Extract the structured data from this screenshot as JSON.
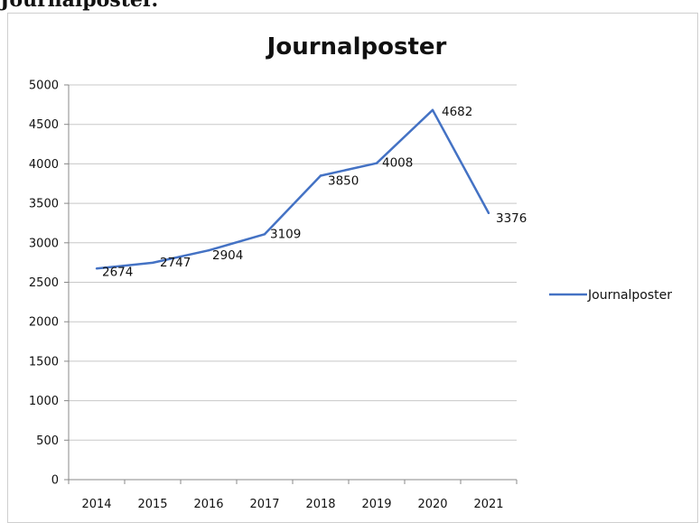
{
  "page": {
    "heading": "Journalposter."
  },
  "chart_data": {
    "type": "line",
    "title": "Journalposter",
    "xlabel": "",
    "ylabel": "",
    "categories": [
      "2014",
      "2015",
      "2016",
      "2017",
      "2018",
      "2019",
      "2020",
      "2021"
    ],
    "series": [
      {
        "name": "Journalposter",
        "values": [
          2674,
          2747,
          2904,
          3109,
          3850,
          4008,
          4682,
          3376
        ]
      }
    ],
    "data_labels": [
      "2674",
      "2747",
      "2904",
      "3109",
      "3850",
      "4008",
      "4682",
      "3376"
    ],
    "ylim": [
      0,
      5000
    ],
    "yticks": [
      0,
      500,
      1000,
      1500,
      2000,
      2500,
      3000,
      3500,
      4000,
      4500,
      5000
    ],
    "grid": true,
    "legend_position": "right",
    "line_color": "#4472C4"
  }
}
